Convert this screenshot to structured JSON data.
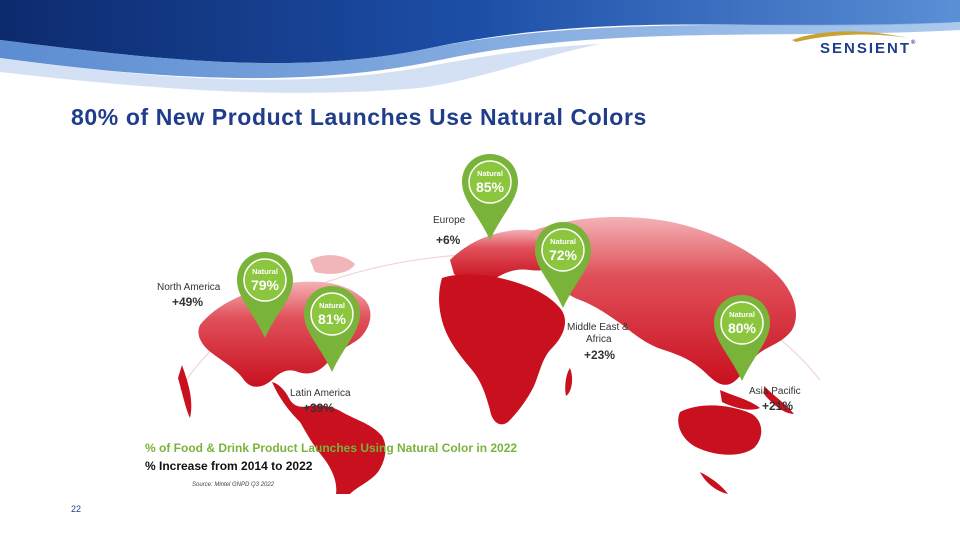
{
  "header": {
    "logo_text": "SENSIENT",
    "logo_tm": "®"
  },
  "title": "80% of New Product Launches Use Natural Colors",
  "regions": {
    "europe": {
      "name": "Europe",
      "increase": "+6%",
      "pin_word": "Natural",
      "pin_value": "85%"
    },
    "north_america": {
      "name": "North America",
      "increase": "+49%",
      "pin_word": "Natural",
      "pin_value": "79%"
    },
    "latin_america": {
      "name": "Latin America",
      "increase": "+39%",
      "pin_word": "Natural",
      "pin_value": "81%"
    },
    "middle_east_africa": {
      "name_line1": "Middle East &",
      "name_line2": "Africa",
      "increase": "+23%",
      "pin_word": "Natural",
      "pin_value": "72%"
    },
    "asia_pacific": {
      "name": "Asia Pacific",
      "increase": "+21%",
      "pin_word": "Natural",
      "pin_value": "80%"
    }
  },
  "legend": {
    "line1": "% of Food & Drink Product Launches Using Natural Color in 2022",
    "line2": "% Increase from 2014 to 2022"
  },
  "source": "Source: Mintel GNPD Q3 2022",
  "page_number": "22",
  "colors": {
    "title_blue": "#1f3d8a",
    "map_red": "#d0202e",
    "pin_green": "#7ab33a",
    "legend_green": "#7ab33a"
  },
  "icons": {
    "pin": "map-pin-icon",
    "logo_swoosh": "swoosh-icon"
  }
}
